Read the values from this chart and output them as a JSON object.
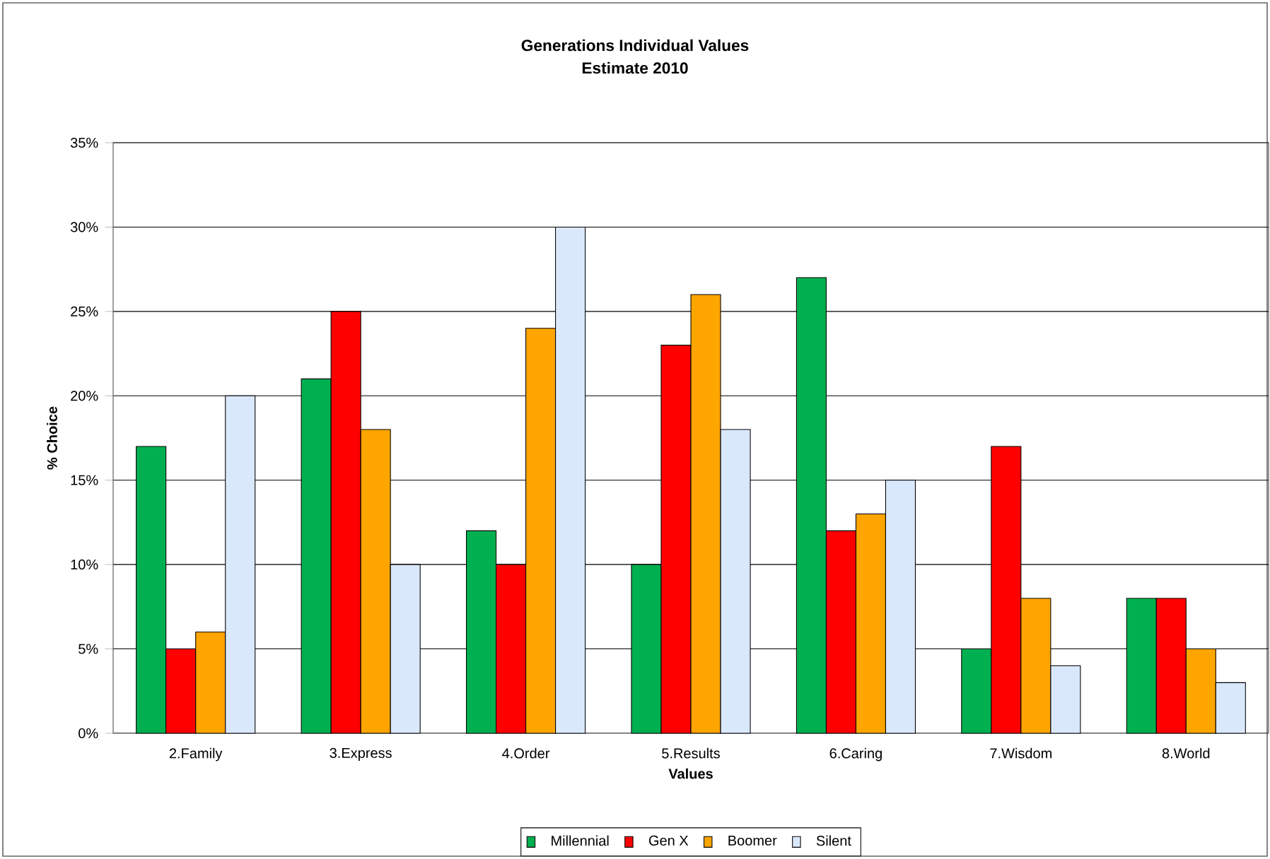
{
  "chart_data": {
    "type": "bar",
    "title": "Generations Individual Values",
    "subtitle": "Estimate 2010",
    "xlabel": "Values",
    "ylabel": "% Choice",
    "categories": [
      "2.Family",
      "3.Express",
      "4.Order",
      "5.Results",
      "6.Caring",
      "7.Wisdom",
      "8.World"
    ],
    "series": [
      {
        "name": "Millennial",
        "color": "#00b050",
        "values": [
          17,
          21,
          12,
          10,
          27,
          5,
          8
        ]
      },
      {
        "name": "Gen X",
        "color": "#ff0000",
        "values": [
          5,
          25,
          10,
          23,
          12,
          17,
          8
        ]
      },
      {
        "name": "Boomer",
        "color": "#ffa500",
        "values": [
          6,
          18,
          24,
          26,
          13,
          8,
          5
        ]
      },
      {
        "name": "Silent",
        "color": "#dae8fc",
        "values": [
          20,
          10,
          30,
          18,
          15,
          4,
          3
        ]
      }
    ],
    "ylim": [
      0,
      35
    ],
    "yticks": [
      {
        "value": 0,
        "label": "0%"
      },
      {
        "value": 5,
        "label": "5%"
      },
      {
        "value": 10,
        "label": "10%"
      },
      {
        "value": 15,
        "label": "15%"
      },
      {
        "value": 20,
        "label": "20%"
      },
      {
        "value": 25,
        "label": "25%"
      },
      {
        "value": 30,
        "label": "30%"
      },
      {
        "value": 35,
        "label": "35%"
      }
    ],
    "grid": "y",
    "legend": "bottom"
  }
}
